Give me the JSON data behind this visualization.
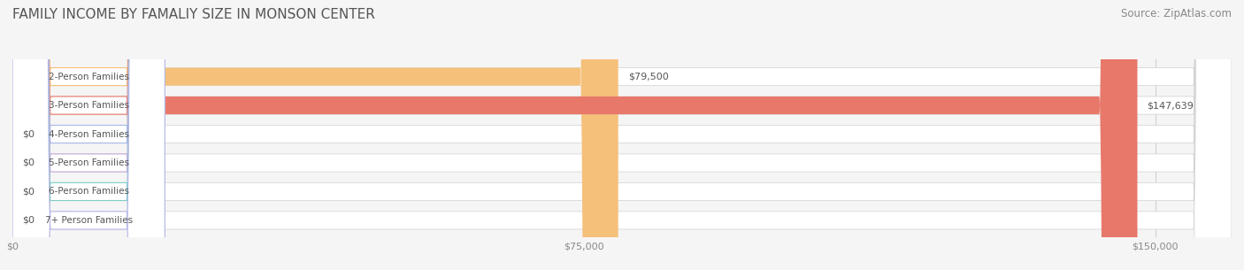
{
  "title": "FAMILY INCOME BY FAMALIY SIZE IN MONSON CENTER",
  "source": "Source: ZipAtlas.com",
  "categories": [
    "2-Person Families",
    "3-Person Families",
    "4-Person Families",
    "5-Person Families",
    "6-Person Families",
    "7+ Person Families"
  ],
  "values": [
    79500,
    147639,
    0,
    0,
    0,
    0
  ],
  "bar_colors": [
    "#f5c07a",
    "#e8786a",
    "#a8b8e8",
    "#c8a8d8",
    "#7ecec8",
    "#b8b8e8"
  ],
  "value_labels": [
    "$79,500",
    "$147,639",
    "$0",
    "$0",
    "$0",
    "$0"
  ],
  "xlim": [
    0,
    160000
  ],
  "xticks": [
    0,
    75000,
    150000
  ],
  "xticklabels": [
    "$0",
    "$75,000",
    "$150,000"
  ],
  "background_color": "#f5f5f5",
  "title_fontsize": 11,
  "source_fontsize": 8.5
}
